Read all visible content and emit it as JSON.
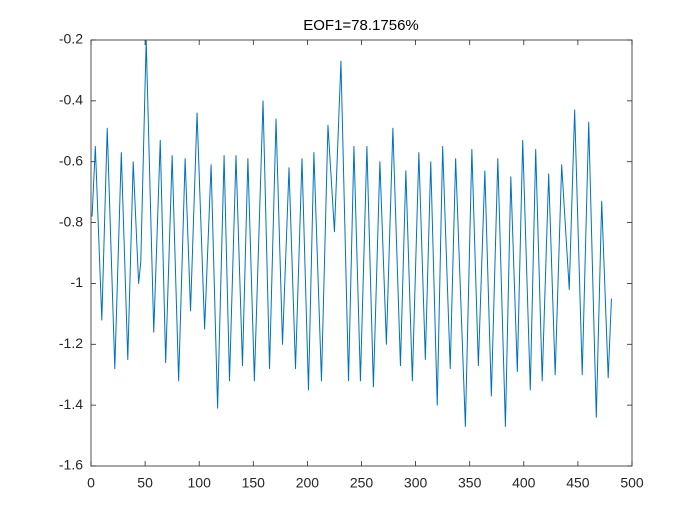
{
  "chart_data": {
    "type": "line",
    "title": "EOF1=78.1756%",
    "x": [
      1,
      4,
      10,
      15,
      22,
      28,
      34,
      39,
      44,
      46,
      51,
      58,
      64,
      69,
      75,
      81,
      87,
      92,
      98,
      105,
      111,
      117,
      123,
      128,
      134,
      140,
      145,
      151,
      159,
      165,
      171,
      177,
      183,
      189,
      195,
      201,
      206,
      213,
      219,
      225,
      231,
      238,
      243,
      249,
      255,
      261,
      267,
      273,
      279,
      286,
      291,
      297,
      303,
      309,
      314,
      320,
      325,
      332,
      337,
      346,
      352,
      358,
      364,
      370,
      376,
      383,
      388,
      394,
      399,
      406,
      411,
      417,
      423,
      429,
      435,
      442,
      447,
      454,
      460,
      467,
      472,
      478,
      481
    ],
    "series": [
      {
        "name": null,
        "color": "#0072bd",
        "values": [
          -0.78,
          -0.55,
          -1.12,
          -0.49,
          -1.28,
          -0.57,
          -1.25,
          -0.6,
          -1.0,
          -0.93,
          -0.2,
          -1.16,
          -0.53,
          -1.26,
          -0.58,
          -1.32,
          -0.59,
          -1.09,
          -0.44,
          -1.15,
          -0.61,
          -1.41,
          -0.58,
          -1.32,
          -0.58,
          -1.27,
          -0.59,
          -1.32,
          -0.4,
          -1.28,
          -0.46,
          -1.2,
          -0.62,
          -1.28,
          -0.59,
          -1.35,
          -0.57,
          -1.32,
          -0.48,
          -0.83,
          -0.27,
          -1.32,
          -0.55,
          -1.32,
          -0.55,
          -1.34,
          -0.6,
          -1.2,
          -0.49,
          -1.27,
          -0.63,
          -1.32,
          -0.57,
          -1.25,
          -0.6,
          -1.4,
          -0.55,
          -1.28,
          -0.59,
          -1.47,
          -0.56,
          -1.27,
          -0.63,
          -1.37,
          -0.59,
          -1.47,
          -0.65,
          -1.29,
          -0.53,
          -1.35,
          -0.56,
          -1.32,
          -0.64,
          -1.3,
          -0.61,
          -1.02,
          -0.43,
          -1.3,
          -0.47,
          -1.44,
          -0.73,
          -1.31,
          -1.05
        ]
      }
    ],
    "xlim": [
      0,
      500
    ],
    "xticks": [
      0,
      50,
      100,
      150,
      200,
      250,
      300,
      350,
      400,
      450,
      500
    ],
    "ylim": [
      -1.6,
      -0.2
    ],
    "yticks": [
      -1.6,
      -1.4,
      -1.2,
      -1,
      -0.8,
      -0.6,
      -0.4,
      -0.2
    ],
    "grid": false
  }
}
